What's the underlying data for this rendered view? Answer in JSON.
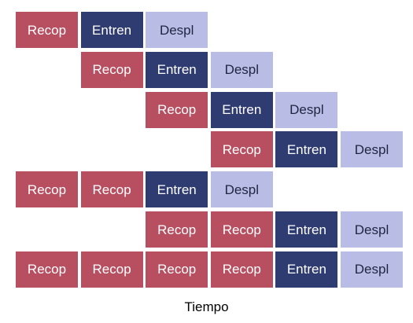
{
  "stage_labels": {
    "recop": "Recop",
    "entren": "Entren",
    "despl": "Despl"
  },
  "colors": {
    "recop_bg": "#b84f61",
    "recop_text": "#ffffff",
    "entren_bg": "#2f3c72",
    "entren_text": "#ffffff",
    "despl_bg": "#b9bde6",
    "despl_text": "#1f2540"
  },
  "rows": [
    {
      "cells": [
        "recop",
        "entren",
        "despl",
        null,
        null,
        null
      ]
    },
    {
      "cells": [
        null,
        "recop",
        "entren",
        "despl",
        null,
        null
      ]
    },
    {
      "cells": [
        null,
        null,
        "recop",
        "entren",
        "despl",
        null
      ]
    },
    {
      "cells": [
        null,
        null,
        null,
        "recop",
        "entren",
        "despl"
      ]
    },
    {
      "cells": [
        "recop",
        "recop",
        "entren",
        "despl",
        null,
        null
      ]
    },
    {
      "cells": [
        null,
        null,
        "recop",
        "recop",
        "entren",
        "despl"
      ]
    },
    {
      "cells": [
        "recop",
        "recop",
        "recop",
        "recop",
        "entren",
        "despl"
      ]
    }
  ],
  "axis_label": "Tiempo"
}
